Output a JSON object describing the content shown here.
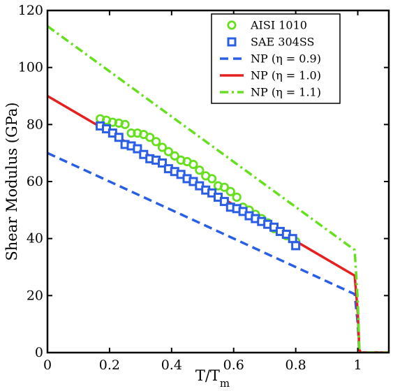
{
  "chart_data": {
    "type": "line",
    "title": "",
    "xlabel_main": "T/T",
    "xlabel_sub": "m",
    "ylabel": "Shear Modulus (GPa)",
    "xlim": [
      0,
      1.1
    ],
    "ylim": [
      0,
      120
    ],
    "x_ticks": [
      0,
      0.2,
      0.4,
      0.6,
      0.8,
      1
    ],
    "x_tick_labels": [
      "0",
      "0.2",
      "0.4",
      "0.6",
      "0.8",
      "1"
    ],
    "y_ticks": [
      0,
      20,
      40,
      60,
      80,
      100,
      120
    ],
    "y_tick_labels": [
      "0",
      "20",
      "40",
      "60",
      "80",
      "100",
      "120"
    ],
    "grid": false,
    "legend_position": "top-right",
    "series": [
      {
        "name": "AISI 1010",
        "kind": "scatter",
        "marker": "circle",
        "color": "#66e01e",
        "x": [
          0.17,
          0.19,
          0.21,
          0.23,
          0.25,
          0.27,
          0.29,
          0.31,
          0.33,
          0.35,
          0.37,
          0.39,
          0.41,
          0.43,
          0.45,
          0.47,
          0.49,
          0.51,
          0.53,
          0.55,
          0.57,
          0.59,
          0.61,
          0.63,
          0.65,
          0.67,
          0.69,
          0.71,
          0.73,
          0.75,
          0.77,
          0.8
        ],
        "y": [
          82,
          81.5,
          80.8,
          80.5,
          80,
          77,
          77,
          76.5,
          75.5,
          74,
          72,
          70.5,
          69,
          67.5,
          67,
          66,
          64,
          62,
          61,
          58.5,
          58,
          56.5,
          54.5,
          51,
          50,
          48.5,
          47,
          45.5,
          43.5,
          42.5,
          41,
          39
        ]
      },
      {
        "name": "SAE 304SS",
        "kind": "scatter",
        "marker": "square",
        "color": "#2a5ee6",
        "x": [
          0.17,
          0.19,
          0.21,
          0.23,
          0.25,
          0.27,
          0.29,
          0.31,
          0.33,
          0.35,
          0.37,
          0.39,
          0.41,
          0.43,
          0.45,
          0.47,
          0.49,
          0.51,
          0.53,
          0.55,
          0.57,
          0.59,
          0.61,
          0.63,
          0.65,
          0.67,
          0.69,
          0.71,
          0.73,
          0.75,
          0.77,
          0.79,
          0.8
        ],
        "y": [
          79.5,
          78.5,
          77,
          75.5,
          73,
          72.5,
          71.5,
          69.5,
          68,
          67.5,
          66.5,
          64.5,
          63.5,
          62.5,
          61,
          60,
          58.5,
          57,
          56,
          54.5,
          53,
          51,
          50.5,
          49.5,
          48,
          47,
          46,
          45,
          44,
          42.5,
          41.5,
          40,
          37.5
        ]
      },
      {
        "name": "NP (η = 0.9)",
        "kind": "line",
        "style": "dashed",
        "color": "#2a5ee6",
        "x": [
          0,
          0.99,
          1.0,
          1.005,
          1.01,
          1.1
        ],
        "y": [
          70,
          20.5,
          10,
          0,
          0,
          0
        ]
      },
      {
        "name": "NP (η = 1.0)",
        "kind": "line",
        "style": "solid",
        "color": "#e62020",
        "x": [
          0,
          0.99,
          1.0,
          1.005,
          1.01,
          1.1
        ],
        "y": [
          90,
          27,
          14,
          1,
          0,
          0
        ]
      },
      {
        "name": "NP (η = 1.1)",
        "kind": "line",
        "style": "dashdot",
        "color": "#66e01e",
        "x": [
          0,
          0.99,
          1.0,
          1.005,
          1.01,
          1.1
        ],
        "y": [
          114.5,
          36,
          18,
          1,
          0,
          0
        ]
      }
    ]
  }
}
